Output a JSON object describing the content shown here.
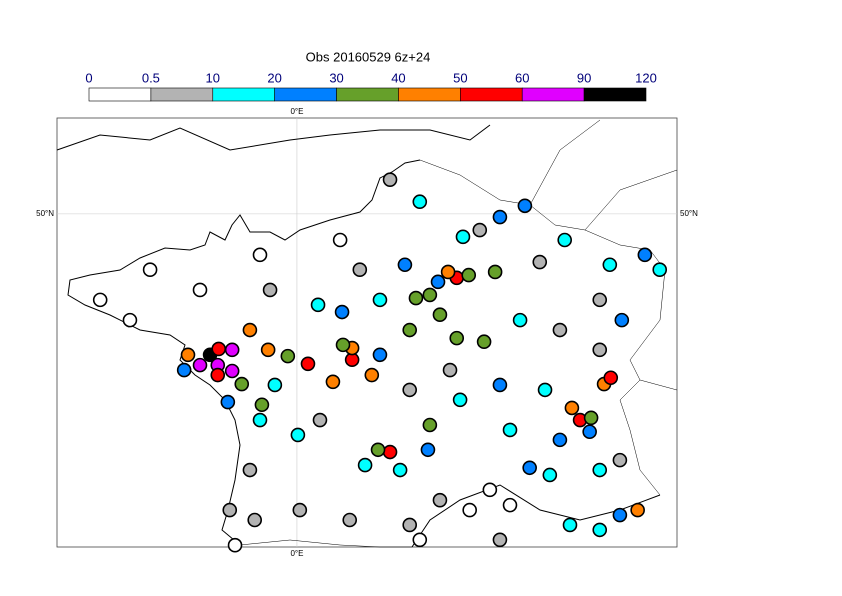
{
  "chart_data": {
    "type": "scatter",
    "title": "Obs 20160529 6z+24",
    "bins": [
      0,
      0.5,
      10,
      20,
      30,
      40,
      50,
      60,
      90,
      120
    ],
    "colors": [
      "#ffffff",
      "#b3b3b3",
      "#00ffff",
      "#0080ff",
      "#66a02a",
      "#ff8000",
      "#ff0000",
      "#e000ff",
      "#000000"
    ],
    "xlim": [
      -5,
      7.92
    ],
    "ylim": [
      42.6,
      52.13
    ],
    "xticks": [
      {
        "value": 0,
        "label": "0°E"
      }
    ],
    "yticks": [
      {
        "value": 50,
        "label": "50°N"
      }
    ],
    "grid": true,
    "points": {
      "x": [
        -1.81,
        -1.63,
        -1.35,
        -2.02,
        -1.65,
        -1.35,
        -2.27,
        -1.65,
        -0.98,
        -0.6,
        0.23,
        1.15,
        1.94,
        3.33,
        3.15,
        6.4,
        6.54,
        5.9,
        5.73,
        7.1,
        1.15,
        0.75,
        1.56,
        2.48,
        2.77,
        2.98,
        3.58,
        4.13,
        3.33,
        2.35,
        0.96,
        -0.19,
        -1.15,
        -0.73,
        1.69,
        2.77,
        6.13,
        3.9,
        2.25,
        2.94,
        4.23,
        4.75,
        7.25,
        6.77,
        1.73,
        0.94,
        -1.44,
        -2.35,
        5.48,
        6.1,
        4.85,
        6.73,
        2.73,
        4.23,
        2.56,
        3.46,
        5.58,
        6.52,
        7.56,
        1.73,
        0.44,
        -0.46,
        -0.77,
        0.02,
        1.42,
        2.15,
        4.44,
        5.27,
        6.31,
        6.31,
        4.65,
        5.17,
        3.4,
        5.69,
        1.94,
        5.06,
        6.31,
        6.31,
        5.48,
        3.19,
        2.35,
        0.48,
        -0.98,
        -0.88,
        0.06,
        1.1,
        2.98,
        2.35,
        4.23,
        6.73,
        -1.4,
        1.31,
        3.81,
        -0.56,
        -3.06,
        -4.1,
        -3.48,
        -2.02,
        -0.77,
        0.9,
        4.02,
        4.44,
        2.56,
        -1.29,
        3.6
      ],
      "y": [
        46.87,
        47.0,
        46.98,
        46.64,
        46.64,
        46.51,
        46.87,
        46.42,
        47.42,
        46.98,
        46.67,
        46.76,
        44.71,
        48.58,
        48.71,
        46.22,
        46.36,
        45.42,
        45.69,
        43.42,
        47.02,
        46.27,
        46.42,
        48.13,
        48.2,
        47.76,
        48.64,
        48.71,
        47.24,
        47.42,
        47.09,
        46.84,
        46.22,
        45.76,
        44.76,
        45.31,
        45.47,
        47.16,
        48.87,
        48.49,
        49.93,
        50.18,
        49.09,
        47.64,
        46.87,
        47.82,
        45.82,
        46.53,
        44.98,
        45.16,
        44.36,
        43.31,
        44.76,
        46.2,
        50.27,
        49.49,
        49.42,
        48.87,
        48.76,
        48.09,
        47.98,
        46.2,
        45.42,
        45.09,
        44.42,
        44.31,
        45.2,
        44.2,
        44.31,
        42.98,
        47.64,
        46.09,
        45.87,
        43.09,
        50.76,
        48.93,
        48.09,
        46.98,
        47.42,
        46.53,
        46.09,
        45.42,
        44.31,
        43.2,
        43.42,
        43.2,
        43.64,
        43.09,
        42.76,
        44.53,
        43.42,
        48.76,
        49.64,
        48.31,
        48.76,
        48.09,
        47.64,
        48.31,
        49.09,
        49.42,
        43.87,
        43.53,
        42.76,
        42.64,
        43.42
      ],
      "values": [
        100,
        55,
        70,
        70,
        70,
        70,
        45,
        55,
        45,
        45,
        55,
        55,
        55,
        55,
        45,
        45,
        55,
        55,
        45,
        45,
        45,
        45,
        45,
        35,
        35,
        35,
        35,
        35,
        35,
        35,
        35,
        35,
        35,
        35,
        35,
        35,
        35,
        35,
        25,
        25,
        25,
        25,
        25,
        25,
        25,
        25,
        25,
        25,
        25,
        25,
        25,
        25,
        25,
        25,
        15,
        15,
        15,
        15,
        15,
        15,
        15,
        15,
        15,
        15,
        15,
        15,
        15,
        15,
        15,
        15,
        15,
        15,
        15,
        15,
        5,
        5,
        5,
        5,
        5,
        5,
        5,
        5,
        5,
        5,
        5,
        5,
        5,
        5,
        5,
        5,
        5,
        5,
        5,
        5,
        0.2,
        0.2,
        0.2,
        0.2,
        0.2,
        0.2,
        0.2,
        0.2,
        0.2,
        0.2,
        0.2
      ]
    }
  }
}
